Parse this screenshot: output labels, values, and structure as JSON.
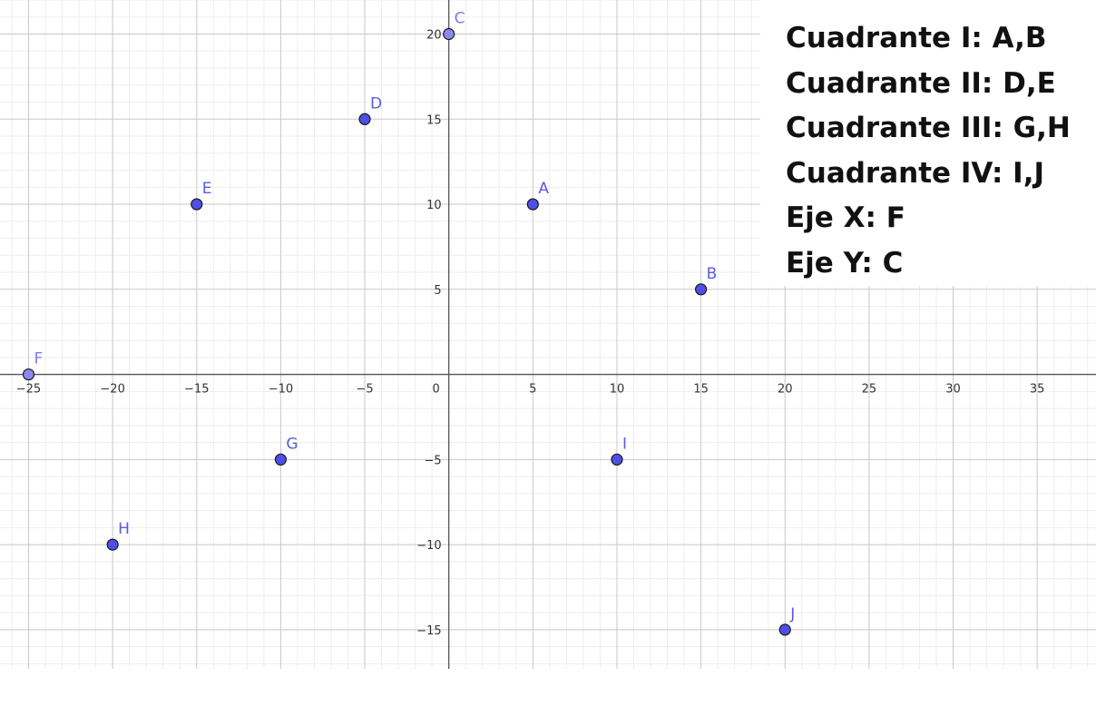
{
  "chart_data": {
    "type": "scatter",
    "title": "",
    "xlabel": "",
    "ylabel": "",
    "xlim": [
      -26.7,
      38.5
    ],
    "ylim": [
      -17.3,
      22.0
    ],
    "grid": true,
    "x_ticks": [
      -25,
      -20,
      -15,
      -10,
      -5,
      5,
      10,
      15,
      20,
      25,
      30,
      35
    ],
    "y_ticks": [
      20,
      15,
      10,
      5,
      -5,
      -10,
      -15
    ],
    "origin_label": "0",
    "point_color": "#4f4fe8",
    "label_color": "#5a5ae6",
    "points": [
      {
        "label": "A",
        "x": 5,
        "y": 10
      },
      {
        "label": "B",
        "x": 15,
        "y": 5
      },
      {
        "label": "C",
        "x": 0,
        "y": 20
      },
      {
        "label": "D",
        "x": -5,
        "y": 15
      },
      {
        "label": "E",
        "x": -15,
        "y": 10
      },
      {
        "label": "F",
        "x": -25,
        "y": 0
      },
      {
        "label": "G",
        "x": -10,
        "y": -5
      },
      {
        "label": "H",
        "x": -20,
        "y": -10
      },
      {
        "label": "I",
        "x": 10,
        "y": -5
      },
      {
        "label": "J",
        "x": 20,
        "y": -15
      }
    ]
  },
  "legend": {
    "lines": [
      "Cuadrante I: A,B",
      "Cuadrante II: D,E",
      "Cuadrante III: G,H",
      "Cuadrante IV: I,J",
      "Eje X: F",
      "Eje Y: C"
    ]
  }
}
